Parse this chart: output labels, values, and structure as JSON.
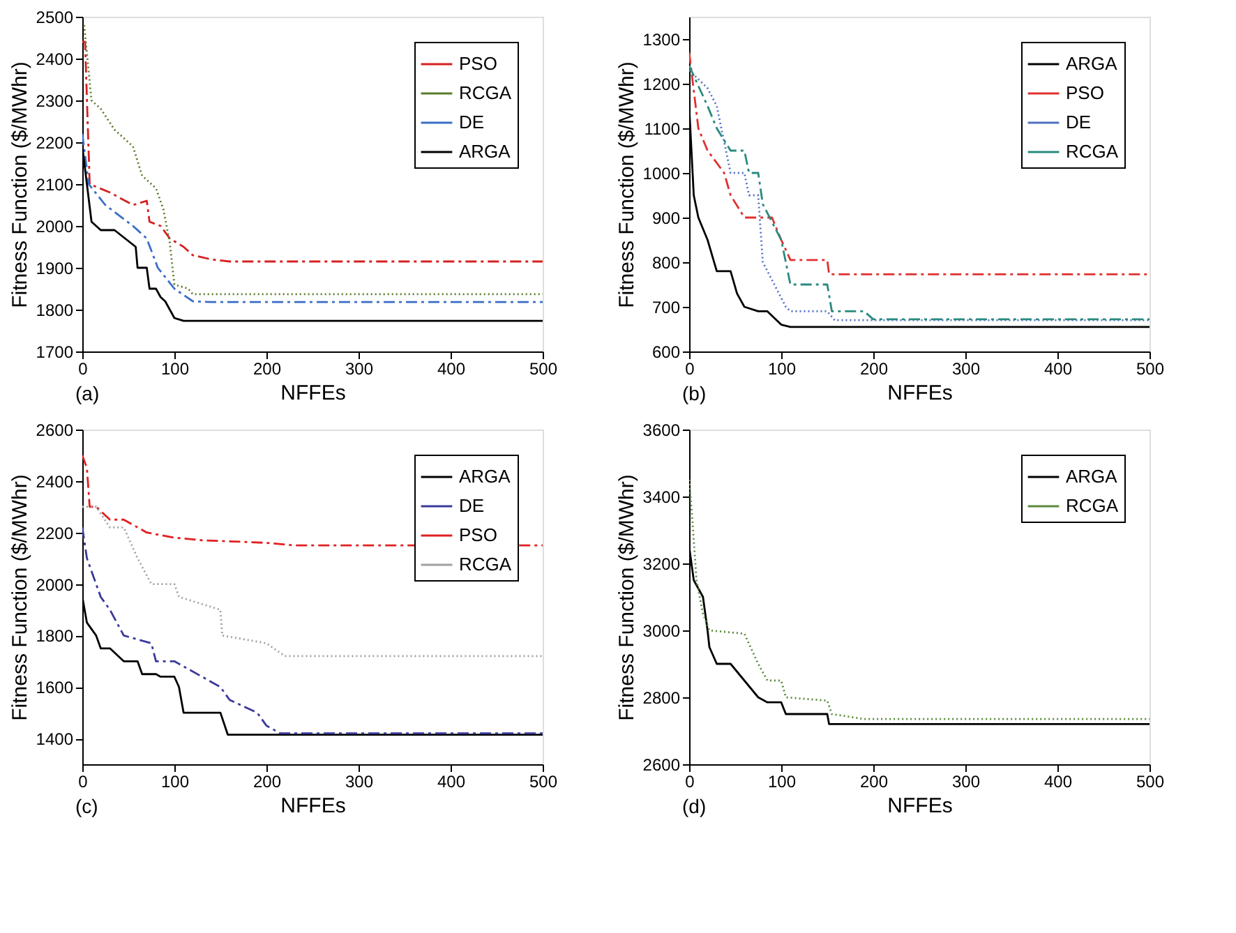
{
  "chart_data": [
    {
      "type": "line",
      "xlabel": "NFFEs",
      "ylabel": "Fitness Function ($/MWhr)",
      "annotations": [
        "(a)"
      ],
      "xlim": [
        0,
        500
      ],
      "xticks": [
        0,
        100,
        200,
        300,
        400,
        500
      ],
      "ylim": [
        1700,
        2500
      ],
      "yticks": [
        1700,
        1800,
        1900,
        2000,
        2100,
        2200,
        2300,
        2400,
        2500
      ],
      "grid": false,
      "legend": "top right",
      "series": [
        {
          "name": "PSO",
          "color": "#d62020",
          "line_style": "dashed",
          "x": [
            0,
            3,
            8,
            30,
            55,
            70,
            73,
            85,
            95,
            110,
            120,
            140,
            160,
            500
          ],
          "values": [
            2440,
            2440,
            2100,
            2080,
            2050,
            2060,
            2010,
            2000,
            1970,
            1950,
            1930,
            1920,
            1915,
            1915
          ]
        },
        {
          "name": "RCGA",
          "color": "#5a7a2a",
          "line_style": "dotted",
          "x": [
            2,
            10,
            20,
            35,
            55,
            65,
            80,
            88,
            95,
            100,
            115,
            120,
            500
          ],
          "values": [
            2480,
            2300,
            2280,
            2230,
            2190,
            2120,
            2090,
            2040,
            1960,
            1860,
            1850,
            1837,
            1837
          ]
        },
        {
          "name": "DE",
          "color": "#3a6ec8",
          "line_style": "dashed",
          "x": [
            0,
            7,
            25,
            55,
            70,
            82,
            100,
            120,
            140,
            500
          ],
          "values": [
            2220,
            2100,
            2050,
            2000,
            1970,
            1900,
            1850,
            1820,
            1818,
            1818
          ]
        },
        {
          "name": "ARGA",
          "color": "#000000",
          "line_style": "solid",
          "x": [
            0,
            5,
            10,
            20,
            35,
            58,
            60,
            70,
            73,
            80,
            85,
            90,
            95,
            100,
            110,
            500
          ],
          "values": [
            2190,
            2100,
            2010,
            1990,
            1990,
            1950,
            1900,
            1900,
            1850,
            1850,
            1830,
            1820,
            1800,
            1780,
            1773,
            1773
          ]
        }
      ]
    },
    {
      "type": "line",
      "xlabel": "NFFEs",
      "ylabel": "Fitness Function ($/MWhr)",
      "annotations": [
        "(b)"
      ],
      "xlim": [
        0,
        500
      ],
      "xticks": [
        0,
        100,
        200,
        300,
        400,
        500
      ],
      "ylim": [
        600,
        1350
      ],
      "yticks": [
        600,
        700,
        800,
        900,
        1000,
        1100,
        1200,
        1300
      ],
      "grid": false,
      "legend": "top right",
      "series": [
        {
          "name": "ARGA",
          "color": "#000000",
          "line_style": "solid",
          "x": [
            0,
            5,
            10,
            20,
            30,
            45,
            52,
            60,
            75,
            85,
            95,
            100,
            110,
            500
          ],
          "values": [
            1150,
            950,
            900,
            850,
            780,
            780,
            730,
            700,
            690,
            690,
            670,
            660,
            655,
            655
          ]
        },
        {
          "name": "PSO",
          "color": "#e03030",
          "line_style": "dashed",
          "x": [
            0,
            10,
            20,
            38,
            45,
            60,
            90,
            100,
            110,
            150,
            152,
            500
          ],
          "values": [
            1270,
            1100,
            1050,
            1000,
            950,
            900,
            900,
            850,
            805,
            805,
            773,
            773
          ]
        },
        {
          "name": "DE",
          "color": "#5070c0",
          "line_style": "dotted",
          "x": [
            0,
            20,
            30,
            45,
            60,
            65,
            75,
            80,
            85,
            105,
            110,
            150,
            158,
            500
          ],
          "values": [
            1230,
            1190,
            1150,
            1000,
            1000,
            950,
            950,
            800,
            780,
            700,
            690,
            690,
            670,
            670
          ]
        },
        {
          "name": "RCGA",
          "color": "#2a8a80",
          "line_style": "dashed",
          "x": [
            0,
            20,
            30,
            45,
            60,
            65,
            75,
            80,
            100,
            110,
            150,
            155,
            190,
            200,
            500
          ],
          "values": [
            1240,
            1150,
            1100,
            1050,
            1050,
            1000,
            1000,
            930,
            850,
            750,
            750,
            690,
            690,
            672,
            672
          ]
        }
      ]
    },
    {
      "type": "line",
      "xlabel": "NFFEs",
      "ylabel": "Fitness Function ($/MWhr)",
      "annotations": [
        "(c)"
      ],
      "xlim": [
        0,
        500
      ],
      "xticks": [
        0,
        100,
        200,
        300,
        400,
        500
      ],
      "ylim": [
        1300,
        2600
      ],
      "yticks": [
        1400,
        1600,
        1800,
        2000,
        2200,
        2400,
        2600
      ],
      "grid": false,
      "legend": "top right",
      "series": [
        {
          "name": "ARGA",
          "color": "#000000",
          "line_style": "solid",
          "x": [
            0,
            5,
            15,
            20,
            30,
            45,
            60,
            65,
            80,
            85,
            100,
            105,
            110,
            150,
            158,
            500
          ],
          "values": [
            1950,
            1850,
            1800,
            1750,
            1750,
            1700,
            1700,
            1650,
            1650,
            1640,
            1640,
            1600,
            1500,
            1500,
            1415,
            1415
          ]
        },
        {
          "name": "DE",
          "color": "#3a3a9a",
          "line_style": "dashed",
          "x": [
            0,
            5,
            20,
            30,
            45,
            75,
            80,
            100,
            150,
            160,
            190,
            200,
            215,
            500
          ],
          "values": [
            2220,
            2100,
            1950,
            1900,
            1800,
            1770,
            1700,
            1700,
            1600,
            1550,
            1500,
            1450,
            1420,
            1420
          ]
        },
        {
          "name": "PSO",
          "color": "#e02020",
          "line_style": "dashed",
          "x": [
            0,
            5,
            8,
            15,
            30,
            45,
            70,
            100,
            130,
            200,
            230,
            500
          ],
          "values": [
            2500,
            2450,
            2300,
            2300,
            2250,
            2250,
            2200,
            2180,
            2170,
            2160,
            2150,
            2150
          ]
        },
        {
          "name": "RCGA",
          "color": "#a0a0a0",
          "line_style": "dotted",
          "x": [
            0,
            15,
            30,
            45,
            60,
            75,
            100,
            105,
            150,
            152,
            200,
            220,
            500
          ],
          "values": [
            2300,
            2300,
            2220,
            2220,
            2100,
            2000,
            2000,
            1950,
            1900,
            1800,
            1770,
            1720,
            1720
          ]
        }
      ]
    },
    {
      "type": "line",
      "xlabel": "NFFEs",
      "ylabel": "Fitness Function ($/MWhr)",
      "annotations": [
        "(d)"
      ],
      "xlim": [
        0,
        500
      ],
      "xticks": [
        0,
        100,
        200,
        300,
        400,
        500
      ],
      "ylim": [
        2600,
        3600
      ],
      "yticks": [
        2600,
        2800,
        3000,
        3200,
        3400,
        3600
      ],
      "grid": false,
      "legend": "top right",
      "series": [
        {
          "name": "ARGA",
          "color": "#000000",
          "line_style": "solid",
          "x": [
            0,
            5,
            15,
            20,
            22,
            30,
            45,
            60,
            75,
            85,
            100,
            105,
            150,
            152,
            500
          ],
          "values": [
            3250,
            3150,
            3100,
            3000,
            2950,
            2900,
            2900,
            2850,
            2800,
            2785,
            2785,
            2750,
            2750,
            2720,
            2720
          ]
        },
        {
          "name": "RCGA",
          "color": "#5a8a3a",
          "line_style": "dotted",
          "x": [
            0,
            3,
            8,
            15,
            22,
            60,
            75,
            85,
            100,
            105,
            150,
            155,
            190,
            500
          ],
          "values": [
            3450,
            3350,
            3150,
            3050,
            3000,
            2990,
            2900,
            2850,
            2850,
            2800,
            2790,
            2750,
            2735,
            2735
          ]
        }
      ]
    }
  ]
}
